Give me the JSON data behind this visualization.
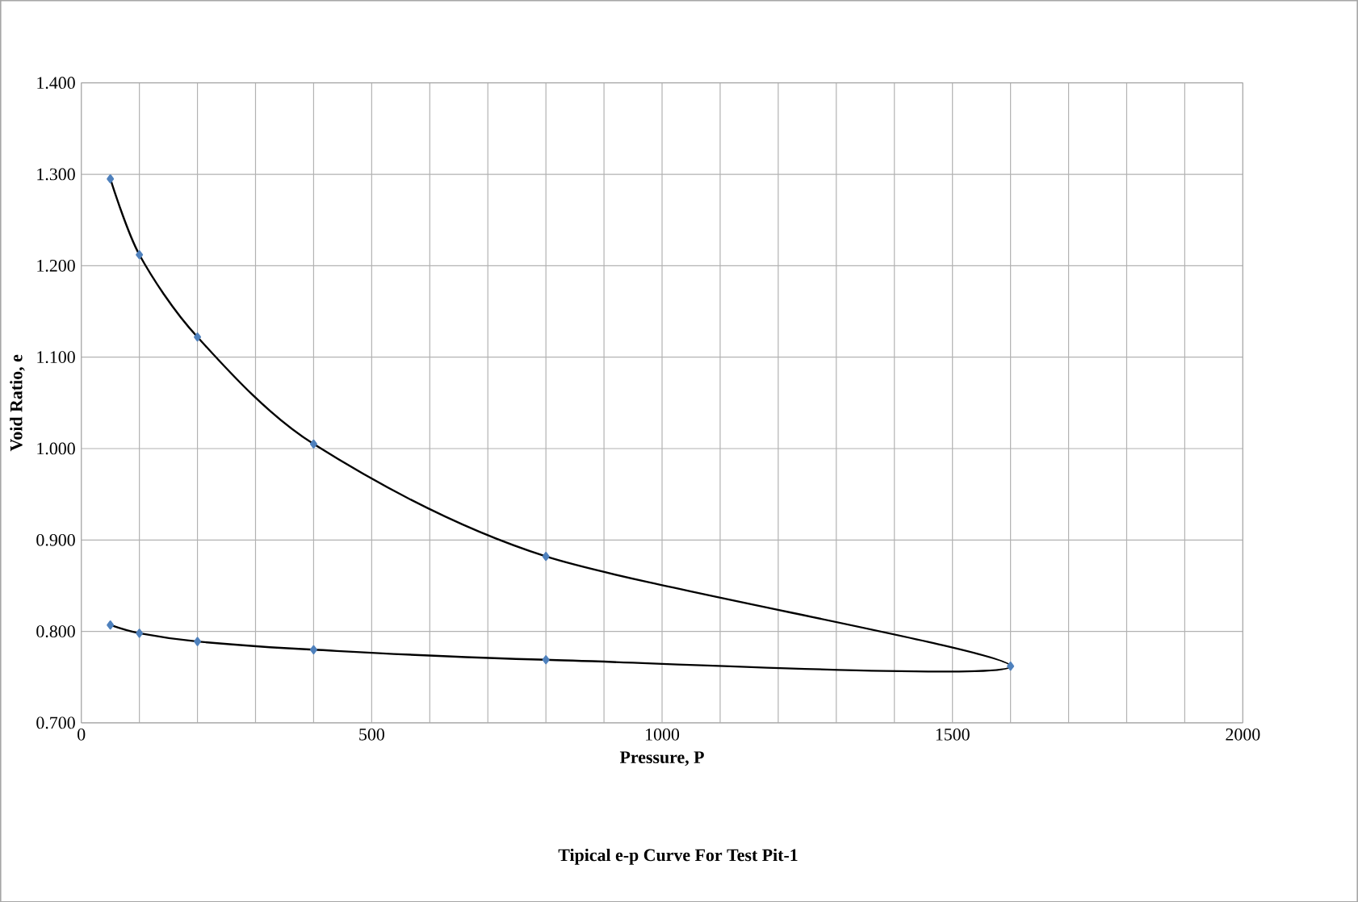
{
  "chart_data": {
    "type": "line",
    "title": "Tipical e-p Curve For Test Pit-1",
    "xlabel": "Pressure, P",
    "ylabel": "Void Ratio, e",
    "series": [
      {
        "color": "#4f81bd",
        "x": [
          50,
          100,
          200,
          400,
          800,
          1600,
          800,
          400,
          200,
          100,
          50
        ],
        "values": [
          1.295,
          1.212,
          1.122,
          1.005,
          0.882,
          0.762,
          0.769,
          0.78,
          0.789,
          0.798,
          0.807
        ]
      }
    ],
    "xlim": [
      0,
      2000
    ],
    "ylim": [
      0.7,
      1.4
    ],
    "xticks": [
      0,
      {
        "value": 100,
        "label": null
      },
      {
        "value": 200,
        "label": null
      },
      {
        "value": 300,
        "label": null
      },
      {
        "value": 400,
        "label": null
      },
      500,
      {
        "value": 600,
        "label": null
      },
      {
        "value": 700,
        "label": null
      },
      {
        "value": 800,
        "label": null
      },
      {
        "value": 900,
        "label": null
      },
      1000,
      {
        "value": 1100,
        "label": null
      },
      {
        "value": 1200,
        "label": null
      },
      {
        "value": 1300,
        "label": null
      },
      {
        "value": 1400,
        "label": null
      },
      1500,
      {
        "value": 1600,
        "label": null
      },
      {
        "value": 1700,
        "label": null
      },
      {
        "value": 1800,
        "label": null
      },
      {
        "value": 1900,
        "label": null
      },
      2000
    ],
    "yticks": [
      {
        "value": 0.7,
        "label": "0.700"
      },
      {
        "value": 0.8,
        "label": "0.800"
      },
      {
        "value": 0.9,
        "label": "0.900"
      },
      {
        "value": 1.0,
        "label": "1.000"
      },
      {
        "value": 1.1,
        "label": "1.100"
      },
      {
        "value": 1.2,
        "label": "1.200"
      },
      {
        "value": 1.3,
        "label": "1.300"
      },
      {
        "value": 1.4,
        "label": "1.400"
      }
    ],
    "grid": true,
    "marker": "diamond",
    "line_style": "solid"
  }
}
